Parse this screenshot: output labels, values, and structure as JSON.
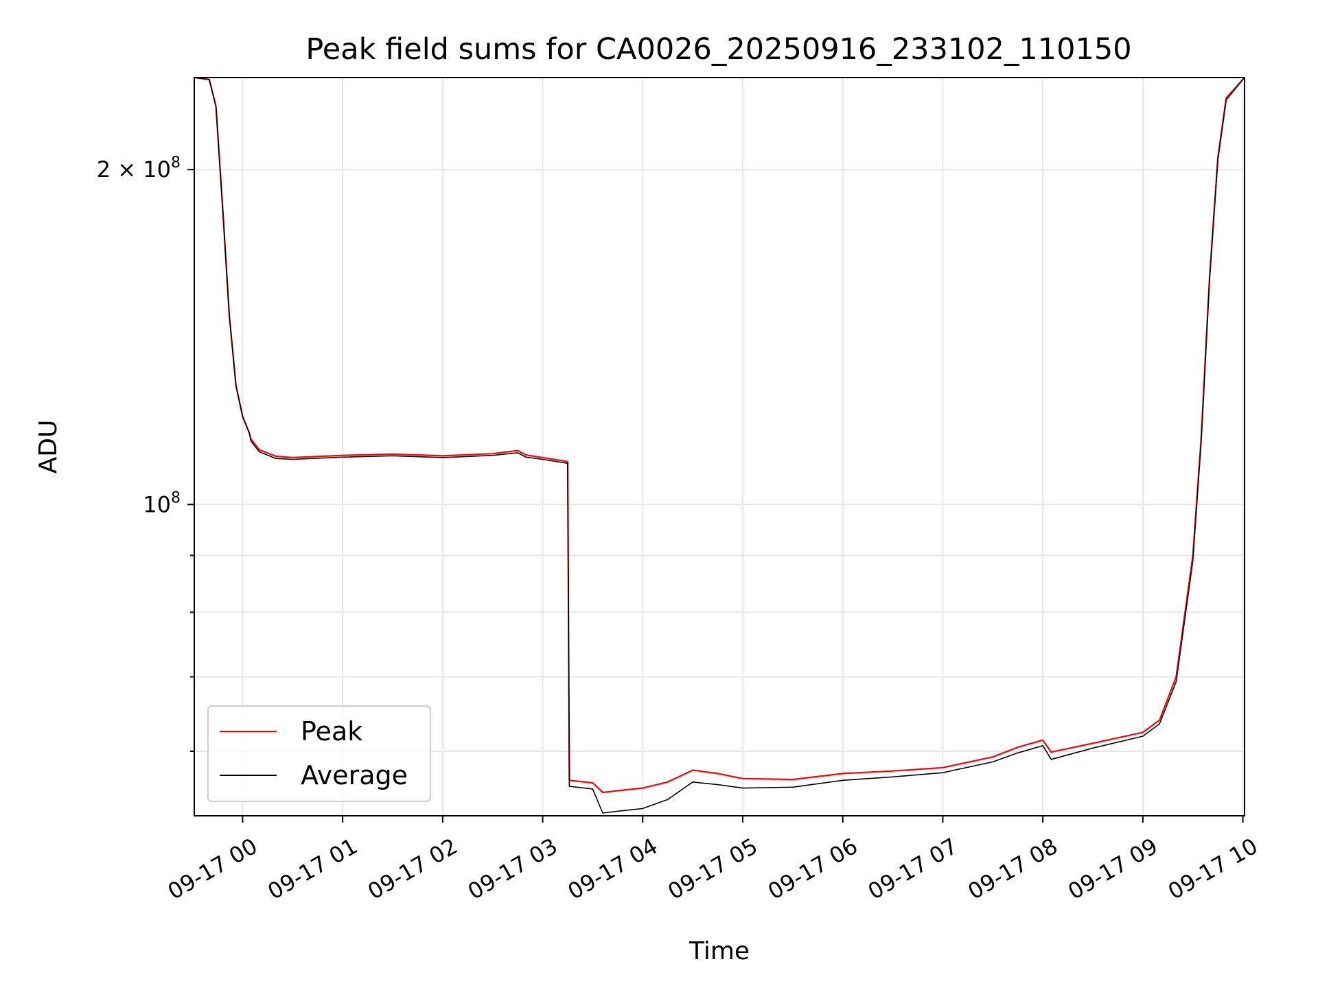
{
  "chart_data": {
    "type": "line",
    "title": "Peak field sums for CA0026_20250916_233102_110150",
    "xlabel": "Time",
    "ylabel": "ADU",
    "yscale": "log",
    "grid": true,
    "legend_position": "lower-left",
    "xlim": [
      "2025-09-16T23:31",
      "2025-09-17T10:01"
    ],
    "ylim": [
      52500000,
      242000000
    ],
    "x_ticks": [
      {
        "value": "2025-09-17T00:00",
        "label": "09-17 00"
      },
      {
        "value": "2025-09-17T01:00",
        "label": "09-17 01"
      },
      {
        "value": "2025-09-17T02:00",
        "label": "09-17 02"
      },
      {
        "value": "2025-09-17T03:00",
        "label": "09-17 03"
      },
      {
        "value": "2025-09-17T04:00",
        "label": "09-17 04"
      },
      {
        "value": "2025-09-17T05:00",
        "label": "09-17 05"
      },
      {
        "value": "2025-09-17T06:00",
        "label": "09-17 06"
      },
      {
        "value": "2025-09-17T07:00",
        "label": "09-17 07"
      },
      {
        "value": "2025-09-17T08:00",
        "label": "09-17 08"
      },
      {
        "value": "2025-09-17T09:00",
        "label": "09-17 09"
      },
      {
        "value": "2025-09-17T10:00",
        "label": "09-17 10"
      }
    ],
    "y_major_ticks": [
      {
        "value": 100000000,
        "base": "10",
        "exp": "8"
      },
      {
        "value": 200000000,
        "mant": "2 × ",
        "base": "10",
        "exp": "8"
      }
    ],
    "y_minor_ticks": [
      60000000,
      70000000,
      80000000,
      90000000
    ],
    "colors": {
      "peak": "#ff0000",
      "average": "#000000"
    },
    "series": [
      {
        "name": "Peak",
        "color": "#ff0000",
        "points": [
          [
            "2025-09-16T23:31",
            242000000
          ],
          [
            "2025-09-16T23:40",
            241000000
          ],
          [
            "2025-09-16T23:44",
            228000000
          ],
          [
            "2025-09-16T23:48",
            185000000
          ],
          [
            "2025-09-16T23:52",
            148000000
          ],
          [
            "2025-09-16T23:56",
            128000000
          ],
          [
            "2025-09-17T00:00",
            120000000
          ],
          [
            "2025-09-17T00:04",
            116000000
          ],
          [
            "2025-09-17T00:05",
            114500000
          ],
          [
            "2025-09-17T00:10",
            112000000
          ],
          [
            "2025-09-17T00:20",
            110500000
          ],
          [
            "2025-09-17T00:30",
            110200000
          ],
          [
            "2025-09-17T01:00",
            110700000
          ],
          [
            "2025-09-17T01:30",
            111000000
          ],
          [
            "2025-09-17T02:00",
            110600000
          ],
          [
            "2025-09-17T02:30",
            111100000
          ],
          [
            "2025-09-17T02:45",
            111800000
          ],
          [
            "2025-09-17T02:50",
            110800000
          ],
          [
            "2025-09-17T03:00",
            110200000
          ],
          [
            "2025-09-17T03:15",
            109300000
          ],
          [
            "2025-09-17T03:16",
            56500000
          ],
          [
            "2025-09-17T03:30",
            56200000
          ],
          [
            "2025-09-17T03:36",
            55100000
          ],
          [
            "2025-09-17T03:45",
            55300000
          ],
          [
            "2025-09-17T04:00",
            55600000
          ],
          [
            "2025-09-17T04:15",
            56300000
          ],
          [
            "2025-09-17T04:30",
            57700000
          ],
          [
            "2025-09-17T04:45",
            57300000
          ],
          [
            "2025-09-17T05:00",
            56700000
          ],
          [
            "2025-09-17T05:30",
            56600000
          ],
          [
            "2025-09-17T06:00",
            57300000
          ],
          [
            "2025-09-17T06:30",
            57600000
          ],
          [
            "2025-09-17T07:00",
            58000000
          ],
          [
            "2025-09-17T07:30",
            59300000
          ],
          [
            "2025-09-17T07:45",
            60500000
          ],
          [
            "2025-09-17T08:00",
            61400000
          ],
          [
            "2025-09-17T08:05",
            59900000
          ],
          [
            "2025-09-17T08:30",
            61000000
          ],
          [
            "2025-09-17T09:00",
            62400000
          ],
          [
            "2025-09-17T09:10",
            64000000
          ],
          [
            "2025-09-17T09:20",
            70000000
          ],
          [
            "2025-09-17T09:30",
            90000000
          ],
          [
            "2025-09-17T09:35",
            115000000
          ],
          [
            "2025-09-17T09:40",
            160000000
          ],
          [
            "2025-09-17T09:45",
            205000000
          ],
          [
            "2025-09-17T09:50",
            232000000
          ],
          [
            "2025-09-17T10:01",
            242000000
          ]
        ]
      },
      {
        "name": "Average",
        "color": "#000000",
        "points": [
          [
            "2025-09-16T23:31",
            242000000
          ],
          [
            "2025-09-16T23:40",
            241000000
          ],
          [
            "2025-09-16T23:44",
            228000000
          ],
          [
            "2025-09-16T23:48",
            185000000
          ],
          [
            "2025-09-16T23:52",
            148000000
          ],
          [
            "2025-09-16T23:56",
            128000000
          ],
          [
            "2025-09-17T00:00",
            120000000
          ],
          [
            "2025-09-17T00:04",
            116000000
          ],
          [
            "2025-09-17T00:05",
            114000000
          ],
          [
            "2025-09-17T00:10",
            111500000
          ],
          [
            "2025-09-17T00:20",
            110000000
          ],
          [
            "2025-09-17T00:30",
            109800000
          ],
          [
            "2025-09-17T01:00",
            110300000
          ],
          [
            "2025-09-17T01:30",
            110600000
          ],
          [
            "2025-09-17T02:00",
            110200000
          ],
          [
            "2025-09-17T02:30",
            110700000
          ],
          [
            "2025-09-17T02:45",
            111300000
          ],
          [
            "2025-09-17T02:50",
            110300000
          ],
          [
            "2025-09-17T03:00",
            109800000
          ],
          [
            "2025-09-17T03:15",
            108900000
          ],
          [
            "2025-09-17T03:16",
            55800000
          ],
          [
            "2025-09-17T03:30",
            55500000
          ],
          [
            "2025-09-17T03:36",
            52800000
          ],
          [
            "2025-09-17T03:45",
            53000000
          ],
          [
            "2025-09-17T04:00",
            53300000
          ],
          [
            "2025-09-17T04:15",
            54300000
          ],
          [
            "2025-09-17T04:30",
            56300000
          ],
          [
            "2025-09-17T04:45",
            56000000
          ],
          [
            "2025-09-17T05:00",
            55600000
          ],
          [
            "2025-09-17T05:30",
            55700000
          ],
          [
            "2025-09-17T06:00",
            56500000
          ],
          [
            "2025-09-17T06:30",
            56900000
          ],
          [
            "2025-09-17T07:00",
            57400000
          ],
          [
            "2025-09-17T07:30",
            58700000
          ],
          [
            "2025-09-17T07:45",
            59800000
          ],
          [
            "2025-09-17T08:00",
            60700000
          ],
          [
            "2025-09-17T08:05",
            59000000
          ],
          [
            "2025-09-17T08:30",
            60400000
          ],
          [
            "2025-09-17T09:00",
            61900000
          ],
          [
            "2025-09-17T09:10",
            63500000
          ],
          [
            "2025-09-17T09:20",
            69300000
          ],
          [
            "2025-09-17T09:30",
            89000000
          ],
          [
            "2025-09-17T09:35",
            114000000
          ],
          [
            "2025-09-17T09:40",
            159000000
          ],
          [
            "2025-09-17T09:45",
            204000000
          ],
          [
            "2025-09-17T09:50",
            231000000
          ],
          [
            "2025-09-17T10:01",
            242000000
          ]
        ]
      }
    ]
  }
}
